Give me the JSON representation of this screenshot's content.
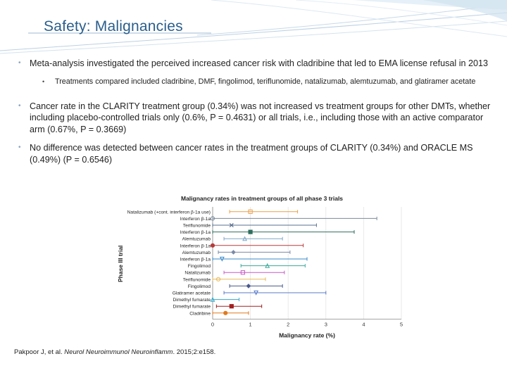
{
  "slide": {
    "title": "Safety: Malignancies",
    "bullet1": "Meta-analysis investigated the perceived increased cancer risk with cladribine that led to EMA license refusal in 2013",
    "sub1": "Treatments compared included cladribine, DMF, fingolimod, teriflunomide, natalizumab, alemtuzumab, and glatiramer acetate",
    "bullet2": "Cancer rate in the CLARITY treatment group (0.34%) was not increased vs treatment groups for other DMTs, whether including placebo-controlled trials only (0.6%, P = 0.4631) or all trials, i.e., including those with an active comparator arm (0.67%, P = 0.3669)",
    "bullet3": "No difference was detected between cancer rates in the treatment groups of CLARITY (0.34%) and ORACLE MS (0.49%) (P = 0.6546)",
    "citation_pre": "Pakpoor J, et al. ",
    "citation_journal": "Neurol Neuroimmunol Neuroinflamm",
    "citation_post": ". 2015;2:e158."
  },
  "chart_data": {
    "type": "scatter",
    "title": "Malignancy rates in treatment groups of all phase 3 trials",
    "xlabel": "Malignancy rate (%)",
    "ylabel": "Phase III trial",
    "xlim": [
      0,
      5
    ],
    "xticks": [
      "0",
      "1",
      "2",
      "3",
      "4",
      "5"
    ],
    "rows": [
      {
        "label": "Natalizumab (+cont. interferon β-1a use)",
        "value": 1.0,
        "lo": 0.45,
        "hi": 2.25,
        "color": "#e8a04a",
        "marker": "square"
      },
      {
        "label": "Interferon β-1a",
        "value": 0.0,
        "lo": 0.0,
        "hi": 4.35,
        "color": "#7a8a9a",
        "marker": "circle"
      },
      {
        "label": "Teriflunomide",
        "value": 0.5,
        "lo": 0.0,
        "hi": 2.75,
        "color": "#5a6f8f",
        "marker": "x"
      },
      {
        "label": "Interferon β-1a",
        "value": 1.0,
        "lo": 0.0,
        "hi": 3.75,
        "color": "#2e6e5e",
        "marker": "square"
      },
      {
        "label": "Alemtuzumab",
        "value": 0.85,
        "lo": 0.3,
        "hi": 1.85,
        "color": "#7fa7c8",
        "marker": "triangle"
      },
      {
        "label": "Interferon β-1a",
        "value": 0.0,
        "lo": 0.0,
        "hi": 2.4,
        "color": "#b83a3a",
        "marker": "circle"
      },
      {
        "label": "Alemtuzumab",
        "value": 0.55,
        "lo": 0.15,
        "hi": 2.05,
        "color": "#7a8aa8",
        "marker": "diamond"
      },
      {
        "label": "Interferon β-1a",
        "value": 0.25,
        "lo": 0.0,
        "hi": 2.5,
        "color": "#3a8ac8",
        "marker": "triangle-down"
      },
      {
        "label": "Fingolimod",
        "value": 1.45,
        "lo": 0.75,
        "hi": 2.45,
        "color": "#3aa89a",
        "marker": "triangle"
      },
      {
        "label": "Natalizumab",
        "value": 0.8,
        "lo": 0.3,
        "hi": 1.9,
        "color": "#c85ac8",
        "marker": "square"
      },
      {
        "label": "Teriflunomide",
        "value": 0.15,
        "lo": 0.0,
        "hi": 1.4,
        "color": "#e8b85a",
        "marker": "circle"
      },
      {
        "label": "Fingolimod",
        "value": 0.95,
        "lo": 0.45,
        "hi": 1.85,
        "color": "#4a5a8a",
        "marker": "diamond"
      },
      {
        "label": "Glatiramer acetate",
        "value": 1.15,
        "lo": 0.3,
        "hi": 3.0,
        "color": "#5a7ac8",
        "marker": "triangle-down"
      },
      {
        "label": "Dimethyl fumarate",
        "value": 0.0,
        "lo": 0.0,
        "hi": 0.7,
        "color": "#3aa8c8",
        "marker": "triangle"
      },
      {
        "label": "Dimethyl fumarate",
        "value": 0.5,
        "lo": 0.1,
        "hi": 1.3,
        "color": "#a02020",
        "marker": "square"
      },
      {
        "label": "Cladribine",
        "value": 0.34,
        "lo": 0.0,
        "hi": 0.95,
        "color": "#e07a20",
        "marker": "circle"
      }
    ]
  }
}
